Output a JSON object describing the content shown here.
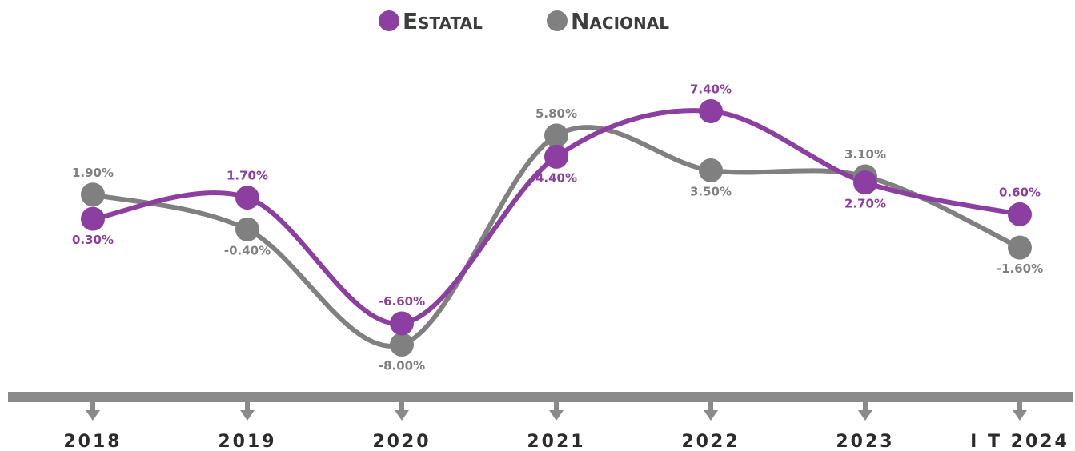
{
  "chart_data": {
    "type": "line",
    "categories": [
      "2018",
      "2019",
      "2020",
      "2021",
      "2022",
      "2023",
      "I T 2024"
    ],
    "series": [
      {
        "name": "Estatal",
        "color": "#8c3fa0",
        "values": [
          0.3,
          1.7,
          -6.6,
          4.4,
          7.4,
          2.7,
          0.6
        ],
        "value_labels": [
          "0.30%",
          "1.70%",
          "-6.60%",
          "4.40%",
          "7.40%",
          "2.70%",
          "0.60%"
        ]
      },
      {
        "name": "Nacional",
        "color": "#808080",
        "values": [
          1.9,
          -0.4,
          -8.0,
          5.8,
          3.5,
          3.1,
          -1.6
        ],
        "value_labels": [
          "1.90%",
          "-0.40%",
          "-8.00%",
          "5.80%",
          "3.50%",
          "3.10%",
          "-1.60%"
        ]
      }
    ]
  }
}
